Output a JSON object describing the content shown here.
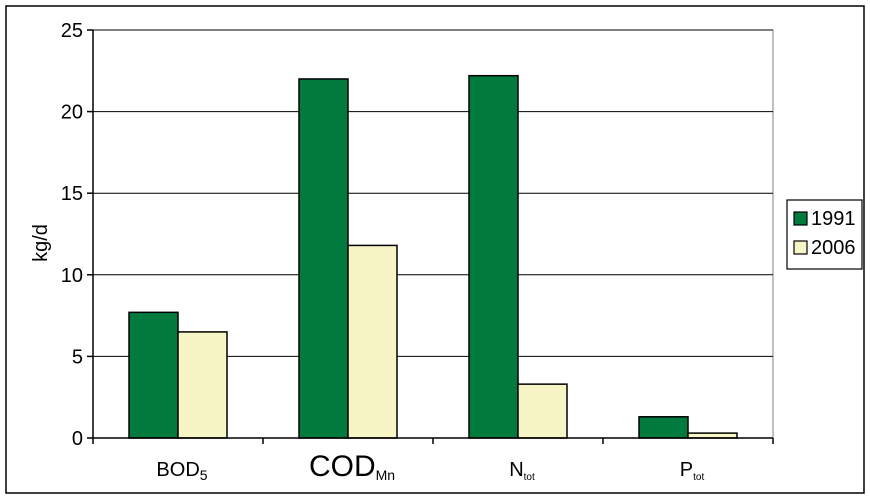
{
  "chart_data": {
    "type": "bar",
    "ylabel": "kg/d",
    "ylim": [
      0,
      25
    ],
    "yticks": [
      "0",
      "5",
      "10",
      "15",
      "20",
      "25"
    ],
    "grid": true,
    "legend_position": "right",
    "categories": [
      {
        "main": "BOD",
        "sub": "5"
      },
      {
        "main": "COD",
        "sub": "Mn"
      },
      {
        "main": "N",
        "sub": "tot"
      },
      {
        "main": "P",
        "sub": "tot"
      }
    ],
    "series": [
      {
        "name": "1991",
        "color": "#007a3d",
        "values": [
          7.7,
          22.0,
          22.2,
          1.3
        ]
      },
      {
        "name": "2006",
        "color": "#f7f5c6",
        "values": [
          6.5,
          11.8,
          3.3,
          0.3
        ]
      }
    ]
  }
}
